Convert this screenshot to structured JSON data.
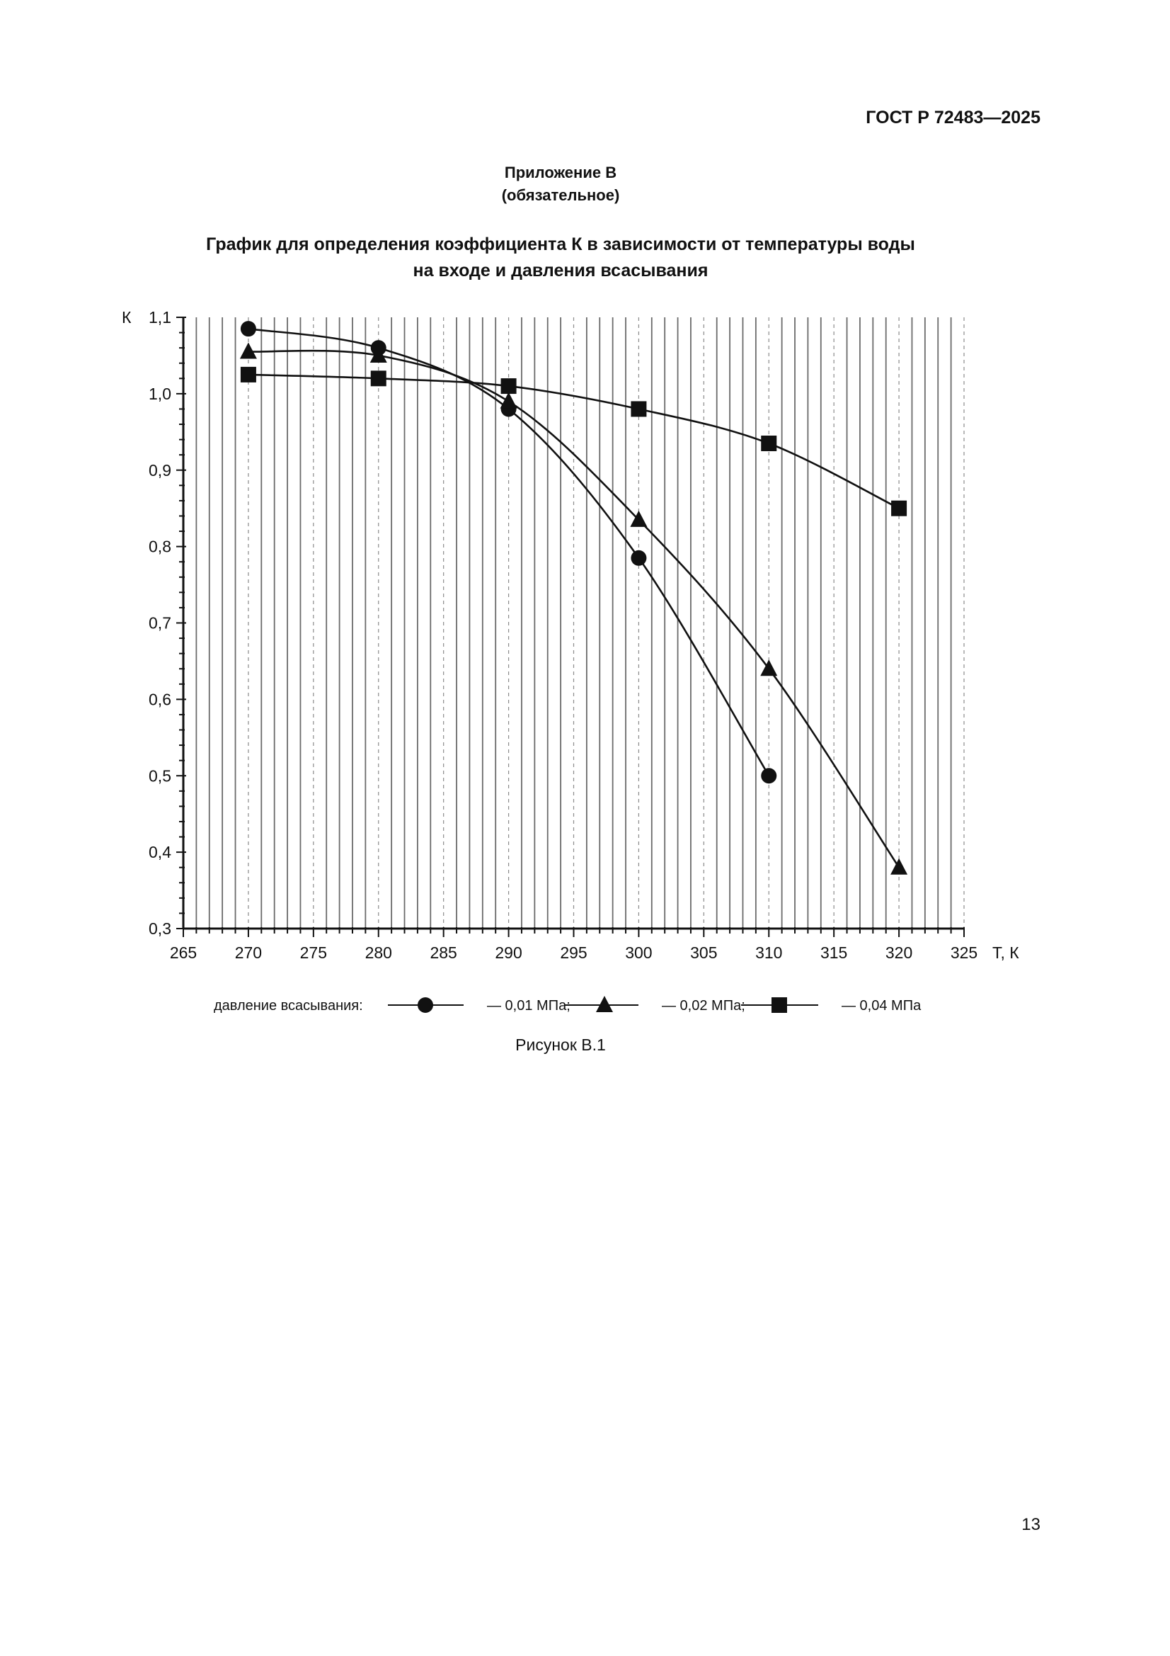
{
  "header": {
    "doc_code": "ГОСТ Р 72483—2025"
  },
  "appendix": {
    "title": "Приложение В",
    "status": "(обязательное)"
  },
  "chart_title": {
    "line1": "График для определения коэффициента К в зависимости от температуры воды",
    "line2": "на входе и давления всасывания"
  },
  "chart_data": {
    "type": "line",
    "title": "График для определения коэффициента К в зависимости от температуры воды на входе и давления всасывания",
    "xlabel": "Т, К",
    "ylabel": "К",
    "xlim": [
      265,
      325
    ],
    "ylim": [
      0.3,
      1.1
    ],
    "x_ticks": [
      "265",
      "270",
      "275",
      "280",
      "285",
      "290",
      "295",
      "300",
      "305",
      "310",
      "315",
      "320",
      "325"
    ],
    "y_ticks": [
      "0,3",
      "0,4",
      "0,5",
      "0,6",
      "0,7",
      "0,8",
      "0,9",
      "1,0",
      "1,1"
    ],
    "grid": "vertical",
    "legend": {
      "prefix": "давление всасывания:",
      "position": "bottom",
      "entries": [
        "— 0,01 МПа;",
        "— 0,02 МПа;",
        "— 0,04 МПа"
      ]
    },
    "series": [
      {
        "marker": "circle",
        "x": [
          270,
          280,
          290,
          300,
          310
        ],
        "y": [
          1.085,
          1.06,
          0.98,
          0.785,
          0.5
        ]
      },
      {
        "marker": "triangle",
        "x": [
          270,
          280,
          290,
          300,
          310,
          320
        ],
        "y": [
          1.055,
          1.05,
          0.99,
          0.835,
          0.64,
          0.38
        ]
      },
      {
        "marker": "square",
        "x": [
          270,
          280,
          290,
          300,
          310,
          320
        ],
        "y": [
          1.025,
          1.02,
          1.01,
          0.98,
          0.935,
          0.85
        ]
      }
    ]
  },
  "figure_caption": "Рисунок В.1",
  "page_number": "13"
}
